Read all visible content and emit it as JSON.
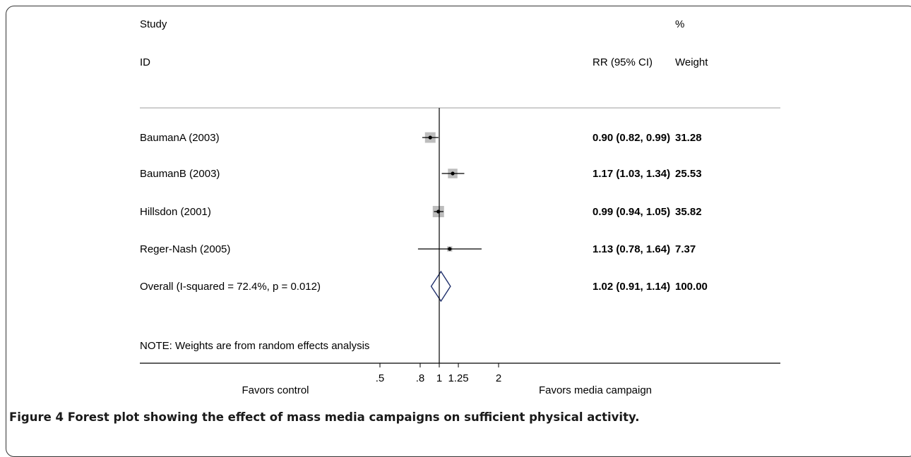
{
  "header": {
    "study": "Study",
    "id": "ID",
    "rr_ci": "RR (95% CI)",
    "pct": "%",
    "weight": "Weight"
  },
  "chart_data": {
    "type": "forest",
    "x_scale": "log",
    "xlim": [
      0.5,
      2
    ],
    "null_value": 1,
    "ticks": [
      {
        "value": 0.5,
        "label": ".5"
      },
      {
        "value": 0.8,
        "label": ".8"
      },
      {
        "value": 1,
        "label": "1"
      },
      {
        "value": 1.25,
        "label": "1.25"
      },
      {
        "value": 2,
        "label": "2"
      }
    ],
    "studies": [
      {
        "label": "BaumanA (2003)",
        "rr": 0.9,
        "lo": 0.82,
        "hi": 0.99,
        "ci_text": "0.90 (0.82, 0.99)",
        "weight": 31.28,
        "weight_text": "31.28"
      },
      {
        "label": "BaumanB (2003)",
        "rr": 1.17,
        "lo": 1.03,
        "hi": 1.34,
        "ci_text": "1.17 (1.03, 1.34)",
        "weight": 25.53,
        "weight_text": "25.53"
      },
      {
        "label": "Hillsdon (2001)",
        "rr": 0.99,
        "lo": 0.94,
        "hi": 1.05,
        "ci_text": "0.99 (0.94, 1.05)",
        "weight": 35.82,
        "weight_text": "35.82"
      },
      {
        "label": "Reger-Nash (2005)",
        "rr": 1.13,
        "lo": 0.78,
        "hi": 1.64,
        "ci_text": "1.13 (0.78, 1.64)",
        "weight": 7.37,
        "weight_text": "7.37"
      }
    ],
    "overall": {
      "label": "Overall  (I-squared = 72.4%, p = 0.012)",
      "rr": 1.02,
      "lo": 0.91,
      "hi": 1.14,
      "ci_text": "1.02 (0.91, 1.14)",
      "weight_text": "100.00"
    },
    "note": "NOTE: Weights are from random effects analysis",
    "favors_left": "Favors control",
    "favors_right": "Favors media campaign",
    "colors": {
      "box": "#bdbdbd",
      "diamond": "#1f2f6b",
      "line": "#000000",
      "separator": "#9e9e9e"
    }
  },
  "caption": {
    "label": "Figure 4",
    "text": "Forest plot showing the effect of mass media campaigns on sufficient physical activity."
  }
}
